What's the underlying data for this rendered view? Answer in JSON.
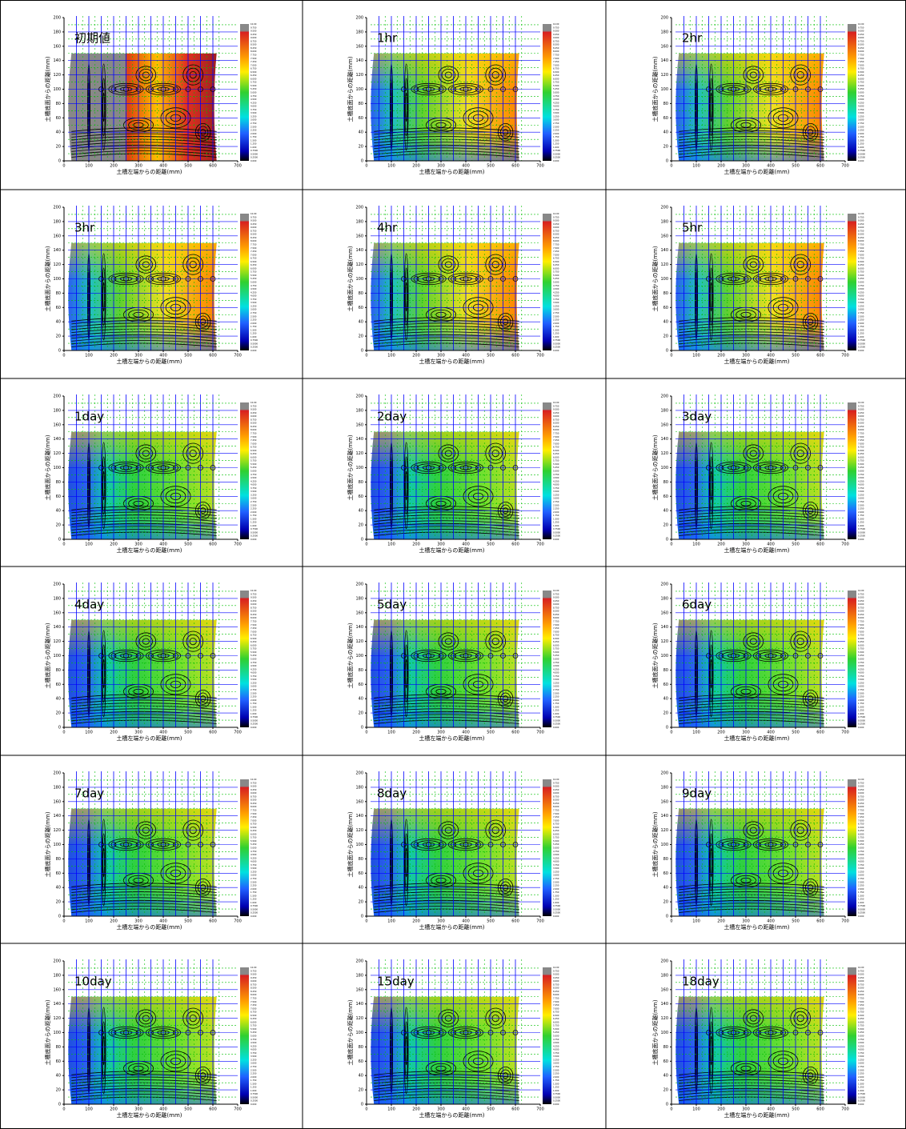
{
  "axes": {
    "x_label": "土槽左端からの距離(mm)",
    "y_label": "土槽底面からの距離(mm)",
    "xlim": [
      0,
      700
    ],
    "xticks": [
      0,
      100,
      200,
      300,
      400,
      500,
      600,
      700
    ],
    "ylim": [
      0,
      200
    ],
    "yticks": [
      0,
      20,
      40,
      60,
      80,
      100,
      120,
      140,
      160,
      180,
      200
    ],
    "colorbar_ticks": [
      {
        "value": 10,
        "label": "10.00"
      },
      {
        "value": 9.75,
        "label": "9.750"
      },
      {
        "value": 9.5,
        "label": "9.500"
      },
      {
        "value": 9.25,
        "label": "9.250"
      },
      {
        "value": 9,
        "label": "9.000"
      },
      {
        "value": 8.75,
        "label": "8.750"
      },
      {
        "value": 8.5,
        "label": "8.500"
      },
      {
        "value": 8.25,
        "label": "8.250"
      },
      {
        "value": 8,
        "label": "8.000"
      },
      {
        "value": 7.75,
        "label": "7.750"
      },
      {
        "value": 7.5,
        "label": "7.500"
      },
      {
        "value": 7.25,
        "label": "7.250"
      },
      {
        "value": 7,
        "label": "7.000"
      },
      {
        "value": 6.75,
        "label": "6.750"
      },
      {
        "value": 6.5,
        "label": "6.500"
      },
      {
        "value": 6.25,
        "label": "6.250"
      },
      {
        "value": 6,
        "label": "6.000"
      },
      {
        "value": 5.75,
        "label": "5.750"
      },
      {
        "value": 5.5,
        "label": "5.500"
      },
      {
        "value": 5.25,
        "label": "5.250"
      },
      {
        "value": 5,
        "label": "5.000"
      },
      {
        "value": 4.75,
        "label": "4.750"
      },
      {
        "value": 4.5,
        "label": "4.500"
      },
      {
        "value": 4.25,
        "label": "4.250"
      },
      {
        "value": 4,
        "label": "4.000"
      },
      {
        "value": 3.75,
        "label": "3.750"
      },
      {
        "value": 3.5,
        "label": "3.500"
      },
      {
        "value": 3.25,
        "label": "3.250"
      },
      {
        "value": 3,
        "label": "3.000"
      },
      {
        "value": 2.75,
        "label": "2.750"
      },
      {
        "value": 2.5,
        "label": "2.500"
      },
      {
        "value": 2.25,
        "label": "2.250"
      },
      {
        "value": 2,
        "label": "2.000"
      },
      {
        "value": 1.75,
        "label": "1.750"
      },
      {
        "value": 1.5,
        "label": "1.500"
      },
      {
        "value": 1.25,
        "label": "1.250"
      },
      {
        "value": 1,
        "label": "1.000"
      },
      {
        "value": 0.75,
        "label": "0.7500"
      },
      {
        "value": 0.5,
        "label": "0.5000"
      },
      {
        "value": 0.25,
        "label": "0.2500"
      },
      {
        "value": 0,
        "label": "0.000"
      }
    ]
  },
  "panels": [
    {
      "label": "初期値"
    },
    {
      "label": "1hr"
    },
    {
      "label": "2hr"
    },
    {
      "label": "3hr"
    },
    {
      "label": "4hr"
    },
    {
      "label": "5hr"
    },
    {
      "label": "1day"
    },
    {
      "label": "2day"
    },
    {
      "label": "3day"
    },
    {
      "label": "4day"
    },
    {
      "label": "5day"
    },
    {
      "label": "6day"
    },
    {
      "label": "7day"
    },
    {
      "label": "8day"
    },
    {
      "label": "9day"
    },
    {
      "label": "10day"
    },
    {
      "label": "15day"
    },
    {
      "label": "18day"
    }
  ]
}
